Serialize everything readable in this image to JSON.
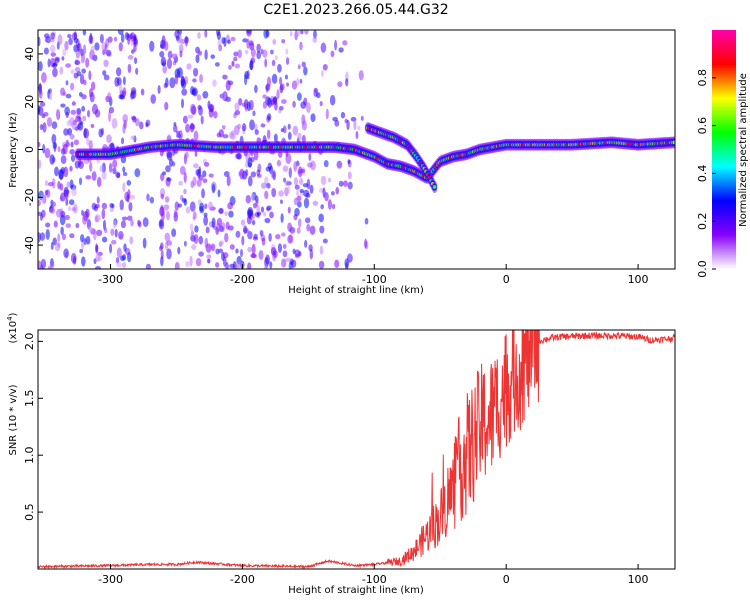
{
  "title": "C2E1.2023.266.05.44.G32",
  "chart_data": [
    {
      "type": "heatmap",
      "xlabel": "Height of straight line (km)",
      "ylabel": "Frequency (Hz)",
      "xlim": [
        -355,
        128
      ],
      "ylim": [
        -50,
        50
      ],
      "x_ticks": [
        -300,
        -200,
        -100,
        0,
        100
      ],
      "y_ticks": [
        -40,
        -20,
        0,
        20,
        40
      ],
      "colorbar": {
        "label": "Normalized spectral amplitude",
        "range": [
          0,
          1
        ],
        "ticks": [
          0.0,
          0.2,
          0.4,
          0.6,
          0.8
        ],
        "colormap": [
          "#ffffff",
          "#8800ff",
          "#0000ff",
          "#00ffff",
          "#00ff00",
          "#ffff00",
          "#ff0000",
          "#ff00aa"
        ]
      },
      "ridge": {
        "x": [
          -325,
          -300,
          -270,
          -250,
          -220,
          -180,
          -150,
          -130,
          -115,
          -100,
          -90,
          -80,
          -70,
          -60,
          -50,
          -40,
          -30,
          -20,
          0,
          20,
          50,
          80,
          100,
          128
        ],
        "y": [
          -2,
          -2,
          1,
          2,
          1,
          1,
          1,
          1,
          0,
          -3,
          -6,
          -7,
          -9,
          -12,
          -5,
          -3,
          -2,
          0,
          2,
          2,
          2,
          3,
          2,
          3
        ]
      },
      "secondary_branch": {
        "x": [
          -105,
          -95,
          -85,
          -75,
          -68,
          -62,
          -58,
          -54
        ],
        "y": [
          9,
          7,
          5,
          2,
          -3,
          -8,
          -12,
          -16
        ]
      }
    },
    {
      "type": "line",
      "xlabel": "Height of straight line (km)",
      "ylabel": "SNR (10 * v/v)",
      "multiplier_label": "(x10",
      "multiplier_exp": "4",
      "multiplier_close": ")",
      "xlim": [
        -355,
        128
      ],
      "ylim": [
        0,
        2.1
      ],
      "x_ticks": [
        -300,
        -200,
        -100,
        0,
        100
      ],
      "y_ticks": [
        0.5,
        1.0,
        1.5,
        2.0
      ],
      "line_color": "#ee3333",
      "series": [
        {
          "x": [
            -355,
            -300,
            -270,
            -250,
            -235,
            -225,
            -200,
            -150,
            -135,
            -125,
            -115,
            -100,
            -80,
            -70,
            -60,
            -50,
            -45,
            -40,
            -35,
            -30,
            -25,
            -20,
            -15,
            -10,
            -5,
            0,
            5,
            10,
            15,
            20,
            25,
            30,
            40,
            60,
            80,
            100,
            110,
            120,
            128
          ],
          "y": [
            0.02,
            0.03,
            0.04,
            0.04,
            0.06,
            0.05,
            0.03,
            0.02,
            0.07,
            0.05,
            0.03,
            0.04,
            0.07,
            0.15,
            0.3,
            0.45,
            0.6,
            0.7,
            0.9,
            1.0,
            1.1,
            1.25,
            1.3,
            1.35,
            1.5,
            1.6,
            1.7,
            1.75,
            1.85,
            1.95,
            2.0,
            2.02,
            2.04,
            2.05,
            2.05,
            2.04,
            2.01,
            2.02,
            2.03
          ]
        }
      ]
    }
  ]
}
